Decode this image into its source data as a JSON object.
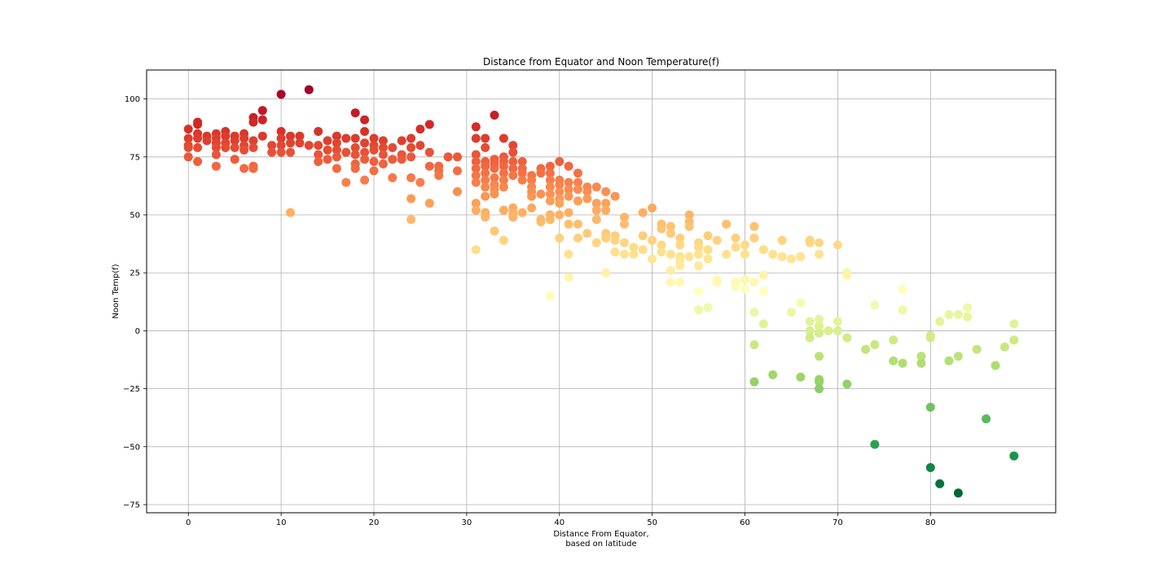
{
  "chart_data": {
    "type": "scatter",
    "title": "Distance from Equator and Noon Temperature(f)",
    "xlabel_line1": "Distance From Equator,",
    "xlabel_line2": "based on latitude",
    "ylabel": "Noon Temp(f)",
    "xlim": [
      -4.5,
      93.5
    ],
    "ylim": [
      -78.5,
      112.5
    ],
    "xticks": [
      0,
      10,
      20,
      30,
      40,
      50,
      60,
      70,
      80
    ],
    "yticks": [
      -75,
      -50,
      -25,
      0,
      25,
      50,
      75,
      100
    ],
    "grid": true,
    "colormap": "RdYlGn_r",
    "color_range": [
      -70,
      104
    ],
    "points": [
      [
        0,
        87
      ],
      [
        0,
        83
      ],
      [
        0,
        80
      ],
      [
        0,
        79
      ],
      [
        0,
        75
      ],
      [
        1,
        90
      ],
      [
        1,
        89
      ],
      [
        1,
        85
      ],
      [
        1,
        83
      ],
      [
        1,
        79
      ],
      [
        1,
        73
      ],
      [
        2,
        84
      ],
      [
        2,
        82
      ],
      [
        3,
        85
      ],
      [
        3,
        83
      ],
      [
        3,
        81
      ],
      [
        3,
        79
      ],
      [
        3,
        76
      ],
      [
        3,
        71
      ],
      [
        4,
        86
      ],
      [
        4,
        84
      ],
      [
        4,
        81
      ],
      [
        4,
        79
      ],
      [
        5,
        84
      ],
      [
        5,
        82
      ],
      [
        5,
        79
      ],
      [
        5,
        74
      ],
      [
        6,
        85
      ],
      [
        6,
        83
      ],
      [
        6,
        80
      ],
      [
        6,
        78
      ],
      [
        6,
        70
      ],
      [
        7,
        92
      ],
      [
        7,
        90
      ],
      [
        7,
        82
      ],
      [
        7,
        79
      ],
      [
        7,
        71
      ],
      [
        7,
        70
      ],
      [
        8,
        95
      ],
      [
        8,
        91
      ],
      [
        8,
        84
      ],
      [
        9,
        80
      ],
      [
        9,
        77
      ],
      [
        10,
        102
      ],
      [
        10,
        86
      ],
      [
        10,
        83
      ],
      [
        10,
        80
      ],
      [
        10,
        77
      ],
      [
        11,
        84
      ],
      [
        11,
        81
      ],
      [
        11,
        77
      ],
      [
        11,
        51
      ],
      [
        12,
        84
      ],
      [
        12,
        81
      ],
      [
        13,
        104
      ],
      [
        13,
        80
      ],
      [
        14,
        86
      ],
      [
        14,
        80
      ],
      [
        14,
        76
      ],
      [
        14,
        73
      ],
      [
        15,
        82
      ],
      [
        15,
        78
      ],
      [
        15,
        74
      ],
      [
        16,
        84
      ],
      [
        16,
        81
      ],
      [
        16,
        78
      ],
      [
        16,
        75
      ],
      [
        16,
        70
      ],
      [
        17,
        83
      ],
      [
        17,
        77
      ],
      [
        17,
        64
      ],
      [
        18,
        94
      ],
      [
        18,
        83
      ],
      [
        18,
        79
      ],
      [
        18,
        76
      ],
      [
        18,
        72
      ],
      [
        18,
        70
      ],
      [
        19,
        91
      ],
      [
        19,
        86
      ],
      [
        19,
        81
      ],
      [
        19,
        77
      ],
      [
        19,
        74
      ],
      [
        19,
        65
      ],
      [
        20,
        83
      ],
      [
        20,
        80
      ],
      [
        20,
        78
      ],
      [
        20,
        73
      ],
      [
        20,
        69
      ],
      [
        21,
        82
      ],
      [
        21,
        79
      ],
      [
        21,
        76
      ],
      [
        21,
        72
      ],
      [
        22,
        79
      ],
      [
        22,
        74
      ],
      [
        22,
        66
      ],
      [
        23,
        82
      ],
      [
        23,
        76
      ],
      [
        23,
        74
      ],
      [
        24,
        83
      ],
      [
        24,
        79
      ],
      [
        24,
        75
      ],
      [
        24,
        66
      ],
      [
        24,
        57
      ],
      [
        24,
        48
      ],
      [
        25,
        87
      ],
      [
        25,
        80
      ],
      [
        25,
        64
      ],
      [
        26,
        89
      ],
      [
        26,
        77
      ],
      [
        26,
        71
      ],
      [
        26,
        55
      ],
      [
        27,
        71
      ],
      [
        27,
        69
      ],
      [
        27,
        67
      ],
      [
        28,
        75
      ],
      [
        29,
        75
      ],
      [
        29,
        69
      ],
      [
        29,
        60
      ],
      [
        31,
        88
      ],
      [
        31,
        83
      ],
      [
        31,
        76
      ],
      [
        31,
        73
      ],
      [
        31,
        70
      ],
      [
        31,
        67
      ],
      [
        31,
        64
      ],
      [
        31,
        55
      ],
      [
        31,
        52
      ],
      [
        31,
        35
      ],
      [
        32,
        83
      ],
      [
        32,
        79
      ],
      [
        32,
        73
      ],
      [
        32,
        71
      ],
      [
        32,
        68
      ],
      [
        32,
        65
      ],
      [
        32,
        62
      ],
      [
        32,
        58
      ],
      [
        32,
        51
      ],
      [
        32,
        49
      ],
      [
        33,
        93
      ],
      [
        33,
        74
      ],
      [
        33,
        72
      ],
      [
        33,
        70
      ],
      [
        33,
        66
      ],
      [
        33,
        63
      ],
      [
        33,
        61
      ],
      [
        33,
        59
      ],
      [
        33,
        43
      ],
      [
        34,
        83
      ],
      [
        34,
        75
      ],
      [
        34,
        73
      ],
      [
        34,
        71
      ],
      [
        34,
        68
      ],
      [
        34,
        65
      ],
      [
        34,
        62
      ],
      [
        34,
        52
      ],
      [
        34,
        39
      ],
      [
        35,
        80
      ],
      [
        35,
        77
      ],
      [
        35,
        73
      ],
      [
        35,
        70
      ],
      [
        35,
        67
      ],
      [
        35,
        53
      ],
      [
        35,
        51
      ],
      [
        35,
        49
      ],
      [
        36,
        73
      ],
      [
        36,
        70
      ],
      [
        36,
        68
      ],
      [
        36,
        65
      ],
      [
        36,
        51
      ],
      [
        37,
        67
      ],
      [
        37,
        65
      ],
      [
        37,
        62
      ],
      [
        37,
        60
      ],
      [
        37,
        58
      ],
      [
        37,
        53
      ],
      [
        38,
        70
      ],
      [
        38,
        68
      ],
      [
        38,
        59
      ],
      [
        38,
        48
      ],
      [
        38,
        47
      ],
      [
        39,
        71
      ],
      [
        39,
        68
      ],
      [
        39,
        65
      ],
      [
        39,
        62
      ],
      [
        39,
        59
      ],
      [
        39,
        56
      ],
      [
        39,
        50
      ],
      [
        39,
        48
      ],
      [
        39,
        15
      ],
      [
        40,
        73
      ],
      [
        40,
        65
      ],
      [
        40,
        63
      ],
      [
        40,
        60
      ],
      [
        40,
        57
      ],
      [
        40,
        55
      ],
      [
        40,
        50
      ],
      [
        40,
        40
      ],
      [
        41,
        71
      ],
      [
        41,
        64
      ],
      [
        41,
        61
      ],
      [
        41,
        58
      ],
      [
        41,
        51
      ],
      [
        41,
        46
      ],
      [
        41,
        33
      ],
      [
        41,
        23
      ],
      [
        42,
        68
      ],
      [
        42,
        64
      ],
      [
        42,
        61
      ],
      [
        42,
        56
      ],
      [
        42,
        46
      ],
      [
        42,
        40
      ],
      [
        43,
        62
      ],
      [
        43,
        60
      ],
      [
        43,
        57
      ],
      [
        43,
        42
      ],
      [
        44,
        62
      ],
      [
        44,
        55
      ],
      [
        44,
        52
      ],
      [
        44,
        48
      ],
      [
        44,
        38
      ],
      [
        45,
        60
      ],
      [
        45,
        55
      ],
      [
        45,
        52
      ],
      [
        45,
        42
      ],
      [
        45,
        40
      ],
      [
        45,
        25
      ],
      [
        46,
        58
      ],
      [
        46,
        41
      ],
      [
        46,
        39
      ],
      [
        46,
        34
      ],
      [
        47,
        49
      ],
      [
        47,
        46
      ],
      [
        47,
        38
      ],
      [
        47,
        33
      ],
      [
        48,
        36
      ],
      [
        48,
        33
      ],
      [
        49,
        51
      ],
      [
        49,
        41
      ],
      [
        49,
        35
      ],
      [
        50,
        53
      ],
      [
        50,
        39
      ],
      [
        50,
        31
      ],
      [
        51,
        46
      ],
      [
        51,
        44
      ],
      [
        51,
        37
      ],
      [
        51,
        34
      ],
      [
        52,
        45
      ],
      [
        52,
        42
      ],
      [
        52,
        33
      ],
      [
        52,
        26
      ],
      [
        52,
        21
      ],
      [
        53,
        40
      ],
      [
        53,
        37
      ],
      [
        53,
        32
      ],
      [
        53,
        30
      ],
      [
        53,
        28
      ],
      [
        53,
        21
      ],
      [
        54,
        50
      ],
      [
        54,
        47
      ],
      [
        54,
        45
      ],
      [
        54,
        32
      ],
      [
        55,
        38
      ],
      [
        55,
        36
      ],
      [
        55,
        33
      ],
      [
        55,
        28
      ],
      [
        55,
        17
      ],
      [
        55,
        9
      ],
      [
        56,
        41
      ],
      [
        56,
        35
      ],
      [
        56,
        31
      ],
      [
        56,
        10
      ],
      [
        57,
        39
      ],
      [
        57,
        22
      ],
      [
        57,
        21
      ],
      [
        58,
        46
      ],
      [
        58,
        33
      ],
      [
        59,
        40
      ],
      [
        59,
        36
      ],
      [
        59,
        21
      ],
      [
        59,
        19
      ],
      [
        60,
        37
      ],
      [
        60,
        33
      ],
      [
        60,
        22
      ],
      [
        60,
        18
      ],
      [
        61,
        45
      ],
      [
        61,
        40
      ],
      [
        61,
        21
      ],
      [
        61,
        8
      ],
      [
        61,
        -6
      ],
      [
        61,
        -22
      ],
      [
        62,
        35
      ],
      [
        62,
        24
      ],
      [
        62,
        17
      ],
      [
        62,
        3
      ],
      [
        63,
        33
      ],
      [
        63,
        -19
      ],
      [
        64,
        39
      ],
      [
        64,
        32
      ],
      [
        65,
        31
      ],
      [
        65,
        8
      ],
      [
        66,
        32
      ],
      [
        66,
        12
      ],
      [
        66,
        -20
      ],
      [
        67,
        39
      ],
      [
        67,
        38
      ],
      [
        67,
        4
      ],
      [
        67,
        0
      ],
      [
        67,
        -3
      ],
      [
        68,
        38
      ],
      [
        68,
        33
      ],
      [
        68,
        5
      ],
      [
        68,
        2
      ],
      [
        68,
        -1
      ],
      [
        68,
        -11
      ],
      [
        68,
        -21
      ],
      [
        68,
        -22
      ],
      [
        68,
        -25
      ],
      [
        69,
        0
      ],
      [
        70,
        37
      ],
      [
        70,
        4
      ],
      [
        70,
        0
      ],
      [
        71,
        25
      ],
      [
        71,
        24
      ],
      [
        71,
        -3
      ],
      [
        71,
        -23
      ],
      [
        73,
        -8
      ],
      [
        74,
        11
      ],
      [
        74,
        -6
      ],
      [
        74,
        -49
      ],
      [
        76,
        -4
      ],
      [
        76,
        -13
      ],
      [
        77,
        18
      ],
      [
        77,
        9
      ],
      [
        77,
        -14
      ],
      [
        79,
        -11
      ],
      [
        79,
        -14
      ],
      [
        80,
        -2
      ],
      [
        80,
        -3
      ],
      [
        80,
        -33
      ],
      [
        80,
        -59
      ],
      [
        81,
        4
      ],
      [
        81,
        -66
      ],
      [
        82,
        7
      ],
      [
        82,
        -13
      ],
      [
        83,
        7
      ],
      [
        83,
        -11
      ],
      [
        83,
        -70
      ],
      [
        84,
        10
      ],
      [
        84,
        6
      ],
      [
        85,
        -8
      ],
      [
        86,
        -38
      ],
      [
        87,
        -15
      ],
      [
        88,
        -7
      ],
      [
        89,
        3
      ],
      [
        89,
        -4
      ],
      [
        89,
        -54
      ]
    ]
  }
}
